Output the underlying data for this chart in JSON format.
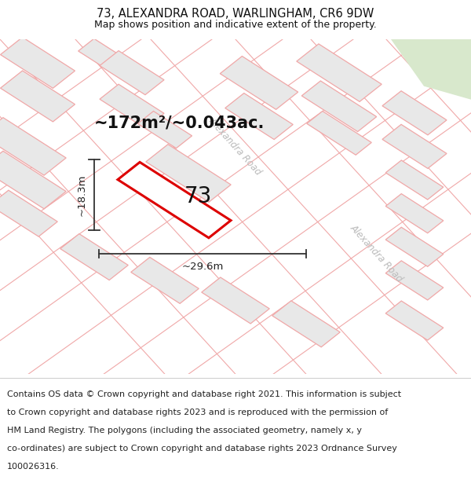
{
  "title": "73, ALEXANDRA ROAD, WARLINGHAM, CR6 9DW",
  "subtitle": "Map shows position and indicative extent of the property.",
  "footer_line1": "Contains OS data © Crown copyright and database right 2021. This information is subject",
  "footer_line2": "to Crown copyright and database rights 2023 and is reproduced with the permission of",
  "footer_line3": "HM Land Registry. The polygons (including the associated geometry, namely x, y",
  "footer_line4": "co-ordinates) are subject to Crown copyright and database rights 2023 Ordnance Survey",
  "footer_line5": "100026316.",
  "area_label": "~172m²/~0.043ac.",
  "width_label": "~29.6m",
  "height_label": "~18.3m",
  "plot_number": "73",
  "bg_color": "#ffffff",
  "map_bg": "#f9f9f9",
  "pink_line_color": "#f0a8a8",
  "block_fill": "#e8e8e8",
  "block_edge": "#d8d8d8",
  "highlight_color": "#dd0000",
  "road_label_color": "#bbbbbb",
  "green_color": "#d8e8cc",
  "title_fontsize": 10.5,
  "subtitle_fontsize": 9,
  "footer_fontsize": 8,
  "area_label_fontsize": 15,
  "plot_number_fontsize": 20,
  "dim_label_fontsize": 9.5,
  "road_label_fontsize": 8.5
}
